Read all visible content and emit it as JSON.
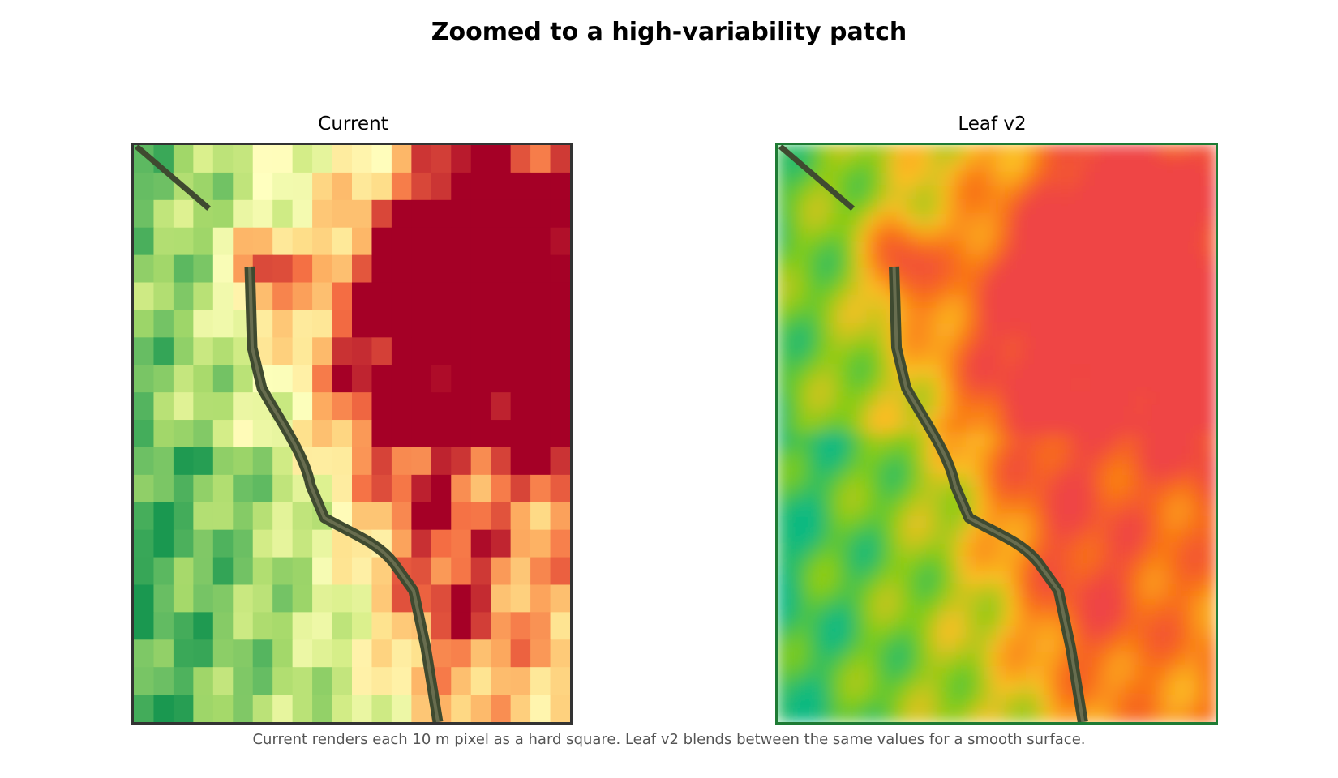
{
  "title": "Zoomed to a high-variability patch",
  "panels": [
    {
      "id": "current",
      "title": "Current",
      "frame_color": "#333333",
      "rendering": "hard-squares"
    },
    {
      "id": "leafv2",
      "title": "Leaf v2",
      "frame_color": "#1e7b34",
      "rendering": "smooth-blend"
    }
  ],
  "caption": "Current renders each 10 m pixel as a hard square. Leaf v2 blends between the same values for a smooth surface.",
  "colors": {
    "current_ramp": [
      "#a50026",
      "#f46d43",
      "#fdae61",
      "#fee08b",
      "#ffffbf",
      "#d9ef8b",
      "#a6d96a",
      "#66bd63",
      "#1a9850"
    ],
    "leaf_ramp": [
      "#ef4444",
      "#f97316",
      "#fbbf24",
      "#84cc16",
      "#10b981"
    ],
    "stream": "#3f4a30"
  }
}
